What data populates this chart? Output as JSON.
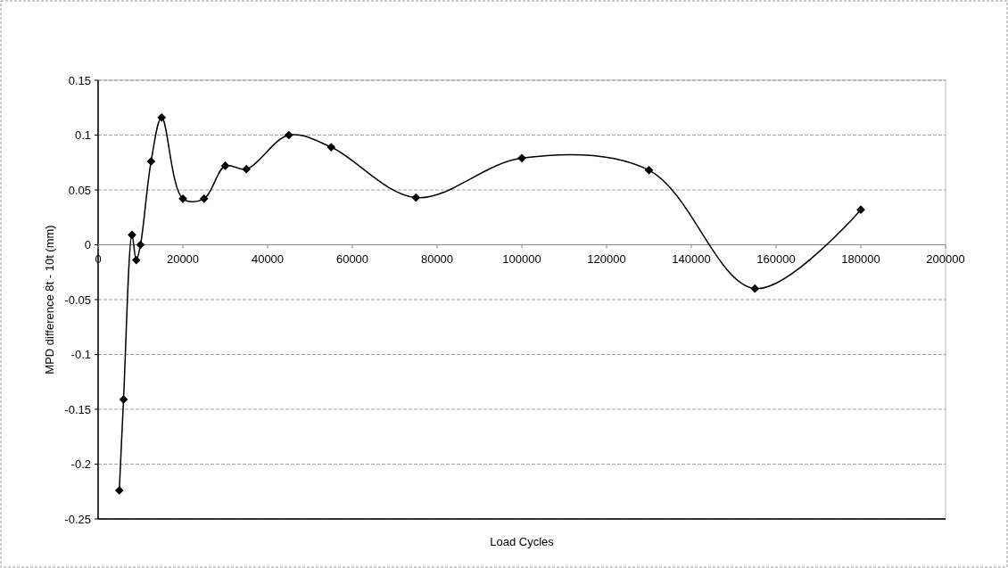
{
  "chart_data": {
    "type": "line",
    "xlabel": "Load Cycles",
    "ylabel": "MPD difference 8t - 10t (mm)",
    "x": [
      5000,
      6000,
      8000,
      9000,
      10000,
      12500,
      15000,
      20000,
      25000,
      30000,
      35000,
      45000,
      55000,
      75000,
      100000,
      130000,
      155000,
      180000
    ],
    "series": [
      {
        "color": "#000000",
        "values": [
          -0.224,
          -0.141,
          0.009,
          -0.014,
          0,
          0.076,
          0.116,
          0.042,
          0.042,
          0.072,
          0.069,
          0.1,
          0.089,
          0.043,
          0.079,
          0.068,
          -0.04,
          0.032
        ]
      }
    ],
    "xlim": [
      0,
      200000
    ],
    "xticks": [
      0,
      20000,
      40000,
      60000,
      80000,
      100000,
      120000,
      140000,
      160000,
      180000,
      200000
    ],
    "ylim": [
      -0.25,
      0.15
    ],
    "yticks": [
      -0.25,
      -0.2,
      -0.15,
      -0.1,
      -0.05,
      0,
      0.05,
      0.1,
      0.15
    ],
    "grid": "y",
    "marker": "diamond",
    "line_style": "solid"
  }
}
